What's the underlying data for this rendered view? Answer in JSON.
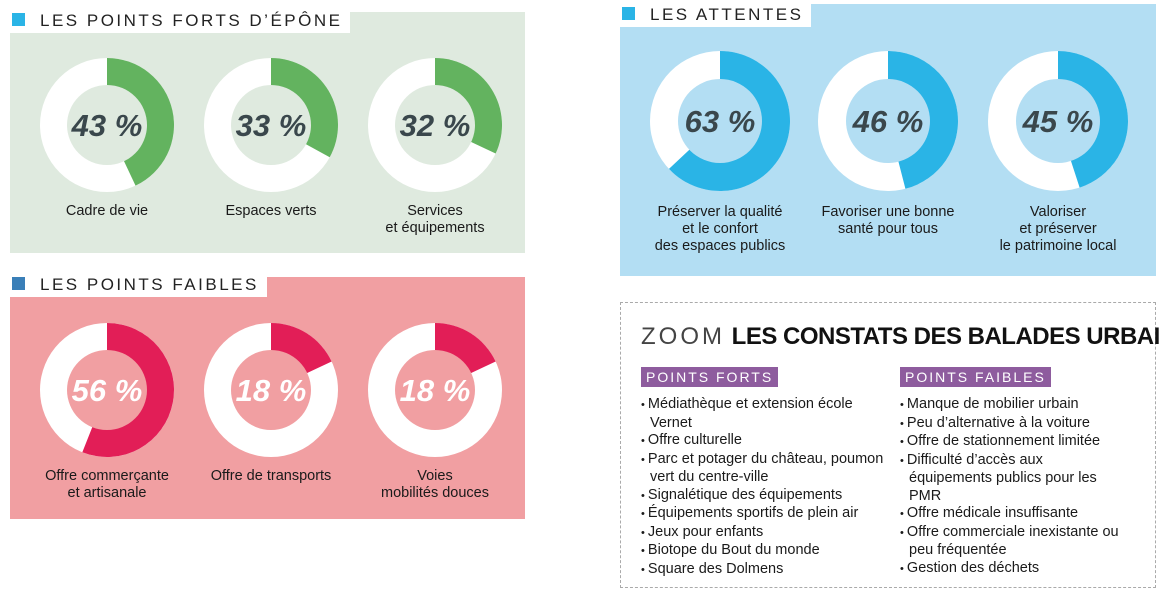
{
  "colors": {
    "strengths_bg": "#dfeadf",
    "strengths_fill": "#63b35f",
    "weak_bg": "#f19fa2",
    "weak_fill": "#e21e57",
    "expect_bg": "#b3def3",
    "expect_fill": "#2ab4e6",
    "square_blue": "#2ab4e6",
    "square_darkblue": "#3a7fb8",
    "tag_purple": "#8e5c9e"
  },
  "strengths": {
    "title": "LES POINTS FORTS D’ÉPÔNE",
    "items": [
      {
        "value": "43 %",
        "label": [
          "Cadre de vie"
        ]
      },
      {
        "value": "33 %",
        "label": [
          "Espaces verts"
        ]
      },
      {
        "value": "32 %",
        "label": [
          "Services",
          "et équipements"
        ]
      }
    ]
  },
  "weaknesses": {
    "title": "LES POINTS FAIBLES",
    "items": [
      {
        "value": "56 %",
        "label": [
          "Offre commerçante",
          "et artisanale"
        ]
      },
      {
        "value": "18 %",
        "label": [
          "Offre de transports"
        ]
      },
      {
        "value": "18 %",
        "label": [
          "Voies",
          "mobilités douces"
        ]
      }
    ]
  },
  "expectations": {
    "title": "LES ATTENTES",
    "items": [
      {
        "value": "63 %",
        "label": [
          "Préserver la qualité",
          "et le confort",
          "des espaces publics"
        ]
      },
      {
        "value": "46 %",
        "label": [
          "Favoriser une bonne",
          "santé pour tous"
        ]
      },
      {
        "value": "45 %",
        "label": [
          "Valoriser",
          "et préserver",
          "le patrimoine local"
        ]
      }
    ]
  },
  "chart_data": [
    {
      "type": "pie",
      "variant": "donut",
      "title": "LES POINTS FORTS D’ÉPÔNE",
      "categories": [
        "Cadre de vie",
        "Espaces verts",
        "Services et équipements"
      ],
      "values": [
        43,
        33,
        32
      ],
      "unit": "%"
    },
    {
      "type": "pie",
      "variant": "donut",
      "title": "LES POINTS FAIBLES",
      "categories": [
        "Offre commerçante et artisanale",
        "Offre de transports",
        "Voies mobilités douces"
      ],
      "values": [
        56,
        18,
        18
      ],
      "unit": "%"
    },
    {
      "type": "pie",
      "variant": "donut",
      "title": "LES ATTENTES",
      "categories": [
        "Préserver la qualité et le confort des espaces publics",
        "Favoriser une bonne santé pour tous",
        "Valoriser et préserver le patrimoine local"
      ],
      "values": [
        63,
        46,
        45
      ],
      "unit": "%"
    }
  ],
  "zoom": {
    "prefix": "ZOOM",
    "title": "LES CONSTATS DES BALADES URBAINES",
    "strong": {
      "tag": "POINTS FORTS",
      "items": [
        "Médiathèque et extension école Vernet",
        "Offre culturelle",
        "Parc et potager du château, poumon vert du centre-ville",
        "Signalétique des équipements",
        "Équipements sportifs de plein air",
        "Jeux pour enfants",
        "Biotope du Bout du monde",
        "Square des Dolmens"
      ]
    },
    "weak": {
      "tag": "POINTS FAIBLES",
      "items": [
        "Manque de mobilier urbain",
        "Peu d’alternative à la voiture",
        "Offre de stationnement limitée",
        "Difficulté d’accès aux équipements publics pour les PMR",
        "Offre médicale insuffisante",
        "Offre commerciale inexistante ou peu fréquentée",
        "Gestion des déchets"
      ]
    }
  }
}
